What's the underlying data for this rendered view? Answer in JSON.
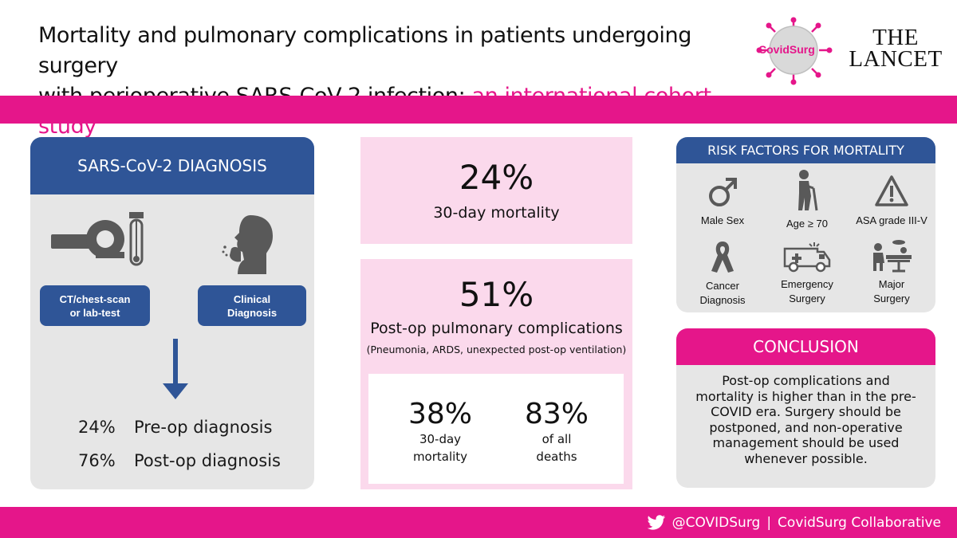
{
  "title": {
    "line1": "Mortality and pulmonary complications in patients undergoing surgery",
    "line2_prefix": "with perioperative SARS-CoV-2 infection: ",
    "line2_highlight": "an international cohort study"
  },
  "logos": {
    "covidsurg": "CovidSurg",
    "lancet_line1": "THE",
    "lancet_line2": "LANCET"
  },
  "diagnosis": {
    "heading": "SARS-CoV-2 DIAGNOSIS",
    "btn_ct_line1": "CT/chest-scan",
    "btn_ct_line2": "or lab-test",
    "btn_clinical_line1": "Clinical",
    "btn_clinical_line2": "Diagnosis",
    "rows": [
      {
        "pct": "24%",
        "label": "Pre-op diagnosis"
      },
      {
        "pct": "76%",
        "label": "Post-op diagnosis"
      }
    ]
  },
  "mortality": {
    "value": "24%",
    "label": "30-day mortality"
  },
  "pulmonary": {
    "value": "51%",
    "label": "Post-op pulmonary complications",
    "note": "(Pneumonia, ARDS, unexpected post-op ventilation)",
    "stat1_value": "38%",
    "stat1_line1": "30-day",
    "stat1_line2": "mortality",
    "stat2_value": "83%",
    "stat2_line1": "of all",
    "stat2_line2": "deaths"
  },
  "risk": {
    "heading": "RISK FACTORS FOR MORTALITY",
    "items": [
      {
        "line1": "Male Sex",
        "line2": "",
        "icon": "male-icon"
      },
      {
        "line1": "Age ≥ 70",
        "line2": "",
        "icon": "elderly-icon"
      },
      {
        "line1": "ASA grade III-V",
        "line2": "",
        "icon": "warning-icon"
      },
      {
        "line1": "Cancer",
        "line2": "Diagnosis",
        "icon": "ribbon-icon"
      },
      {
        "line1": "Emergency",
        "line2": "Surgery",
        "icon": "ambulance-icon"
      },
      {
        "line1": "Major",
        "line2": "Surgery",
        "icon": "operating-table-icon"
      }
    ]
  },
  "conclusion": {
    "heading": "CONCLUSION",
    "text": "Post-op complications and mortality is higher than in the pre-COVID era. Surgery should be postponed, and non-operative management should be used whenever possible."
  },
  "footer": {
    "handle": "@COVIDSurg",
    "separator": "|",
    "org": "CovidSurg Collaborative"
  },
  "colors": {
    "pink": "#e5168a",
    "blue": "#2f5597",
    "light_pink": "#fbd9ec",
    "grey": "#e6e6e6"
  }
}
